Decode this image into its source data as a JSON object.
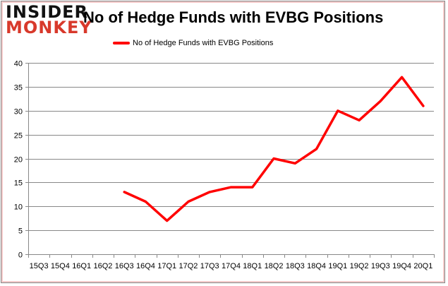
{
  "logo": {
    "line1": "INSIDER",
    "line2": "MONKEY"
  },
  "chart_data": {
    "type": "line",
    "title": "No of Hedge Funds with EVBG Positions",
    "xlabel": "",
    "ylabel": "",
    "categories": [
      "15Q3",
      "15Q4",
      "16Q1",
      "16Q2",
      "16Q3",
      "16Q4",
      "17Q1",
      "17Q2",
      "17Q3",
      "17Q4",
      "18Q1",
      "18Q2",
      "18Q3",
      "18Q4",
      "19Q1",
      "19Q2",
      "19Q3",
      "19Q4",
      "20Q1"
    ],
    "series": [
      {
        "name": "No of Hedge Funds with EVBG Positions",
        "color": "#ff0000",
        "values": [
          null,
          null,
          null,
          null,
          13,
          11,
          7,
          11,
          13,
          14,
          14,
          20,
          19,
          22,
          30,
          28,
          32,
          37,
          31
        ]
      }
    ],
    "ylim": [
      0,
      40
    ],
    "yticks": [
      0,
      5,
      10,
      15,
      20,
      25,
      30,
      35,
      40
    ],
    "grid": true,
    "legend": "top-center"
  }
}
